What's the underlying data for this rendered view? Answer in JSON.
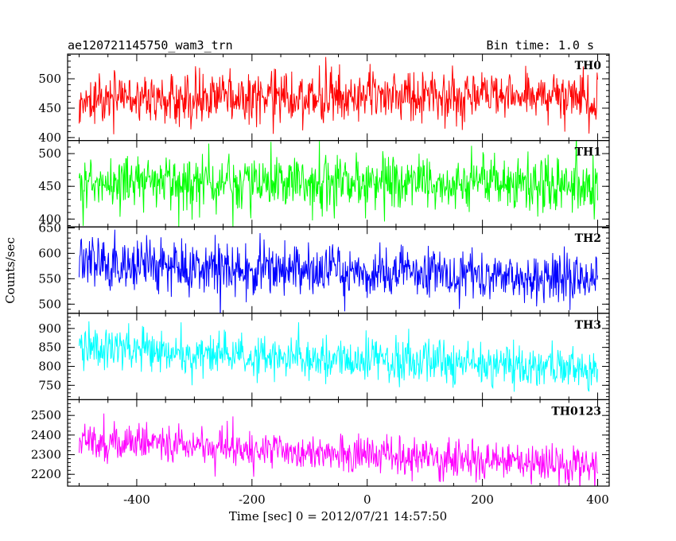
{
  "header": {
    "title": "ae120721145750_wam3_trn",
    "bin_time": "Bin time: 1.0 s"
  },
  "chart_data": {
    "type": "line",
    "title": "ae120721145750_wam3_trn",
    "subtitle": "Bin time: 1.0 s",
    "xlabel": "Time [sec] 0 = 2012/07/21 14:57:50",
    "ylabel": "Counts/sec",
    "xlim": [
      -520,
      420
    ],
    "x_step": 1,
    "x_range": [
      -500,
      400
    ],
    "xticks": [
      -400,
      -200,
      0,
      200,
      400
    ],
    "grid": false,
    "legend": "none",
    "panels": [
      {
        "name": "TH0",
        "color": "#ff0000",
        "ylim": [
          395,
          542
        ],
        "yticks": [
          400,
          450,
          500
        ],
        "mean_start": 470,
        "mean_end": 470,
        "noise": 22
      },
      {
        "name": "TH1",
        "color": "#00ff00",
        "ylim": [
          388,
          520
        ],
        "yticks": [
          400,
          450,
          500
        ],
        "mean_start": 455,
        "mean_end": 455,
        "noise": 21
      },
      {
        "name": "TH2",
        "color": "#0000ff",
        "ylim": [
          482,
          652
        ],
        "yticks": [
          500,
          550,
          600,
          650
        ],
        "mean_start": 580,
        "mean_end": 550,
        "noise": 25
      },
      {
        "name": "TH3",
        "color": "#00ffff",
        "ylim": [
          712,
          940
        ],
        "yticks": [
          750,
          800,
          850,
          900
        ],
        "mean_start": 845,
        "mean_end": 795,
        "noise": 28
      },
      {
        "name": "TH0123",
        "color": "#ff00ff",
        "ylim": [
          2140,
          2580
        ],
        "yticks": [
          2200,
          2300,
          2400,
          2500
        ],
        "mean_start": 2370,
        "mean_end": 2240,
        "noise": 48
      }
    ]
  }
}
